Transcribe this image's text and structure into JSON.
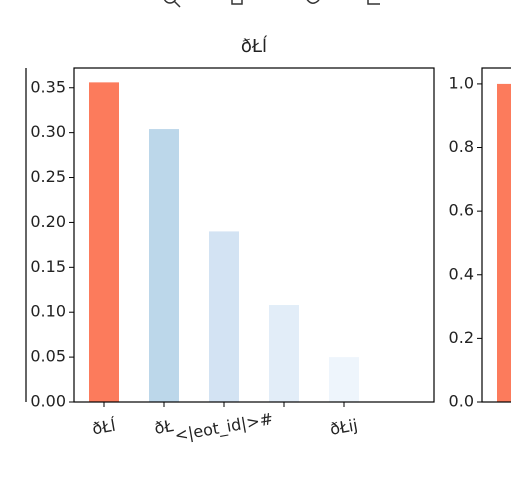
{
  "chart_data": [
    {
      "type": "bar",
      "title": "ðŁĺ",
      "categories": [
        "ðŁĺ",
        "ðŁ",
        "<|eot_id|>#",
        null,
        "ðŁĳ"
      ],
      "values": [
        0.356,
        0.304,
        0.19,
        0.108,
        0.05
      ],
      "colors": [
        "#fc7b5c",
        "#bcd7ea",
        "#d3e3f3",
        "#e2edf8",
        "#eef5fc"
      ],
      "ylim": [
        0,
        0.372
      ],
      "yticks": [
        {
          "value": 0,
          "label": "0.00"
        },
        0.05,
        {
          "value": 0.1,
          "label": "0.10"
        },
        0.15,
        {
          "value": 0.2,
          "label": "0.20"
        },
        0.25,
        {
          "value": 0.3,
          "label": "0.30"
        },
        0.35
      ]
    },
    {
      "type": "bar",
      "categories": [
        null
      ],
      "values": [
        1.0
      ],
      "colors": [
        "#fc7b5c"
      ],
      "ylim": [
        0,
        1.05
      ],
      "yticks": [
        {
          "value": 0,
          "label": "0.0"
        },
        0.2,
        0.4,
        0.6,
        0.8,
        {
          "value": 1,
          "label": "1.0"
        }
      ]
    }
  ]
}
